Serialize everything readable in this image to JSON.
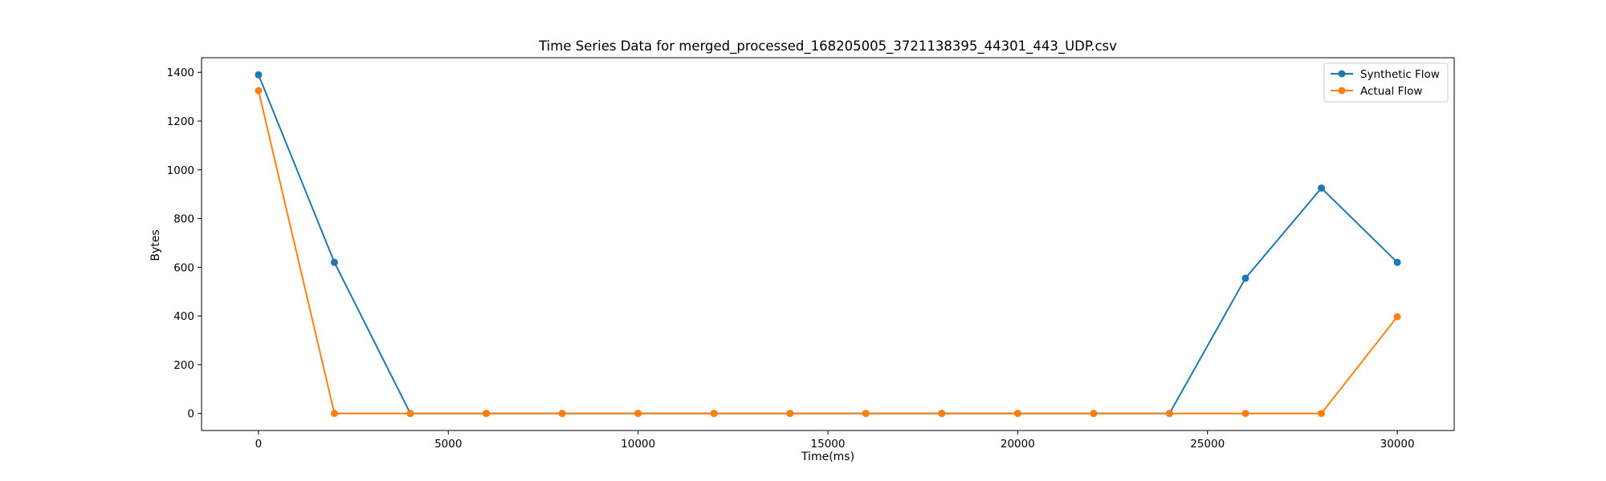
{
  "chart_data": {
    "type": "line",
    "title": "Time Series Data for merged_processed_168205005_3721138395_44301_443_UDP.csv",
    "xlabel": "Time(ms)",
    "ylabel": "Bytes",
    "x": [
      0,
      2000,
      4000,
      6000,
      8000,
      10000,
      12000,
      14000,
      16000,
      18000,
      20000,
      22000,
      24000,
      26000,
      28000,
      30000
    ],
    "series": [
      {
        "name": "Synthetic Flow",
        "color": "#1f77b4",
        "values": [
          1390,
          620,
          0,
          0,
          0,
          0,
          0,
          0,
          0,
          0,
          0,
          0,
          0,
          555,
          925,
          620
        ]
      },
      {
        "name": "Actual Flow",
        "color": "#ff7f0e",
        "values": [
          1325,
          0,
          0,
          0,
          0,
          0,
          0,
          0,
          0,
          0,
          0,
          0,
          0,
          0,
          0,
          397
        ]
      }
    ],
    "xlim": [
      -1500,
      31500
    ],
    "ylim": [
      -70,
      1460
    ],
    "xticks": [
      0,
      5000,
      10000,
      15000,
      20000,
      25000,
      30000
    ],
    "yticks": [
      0,
      200,
      400,
      600,
      800,
      1000,
      1200,
      1400
    ],
    "legend_position": "top-right",
    "grid": false
  }
}
